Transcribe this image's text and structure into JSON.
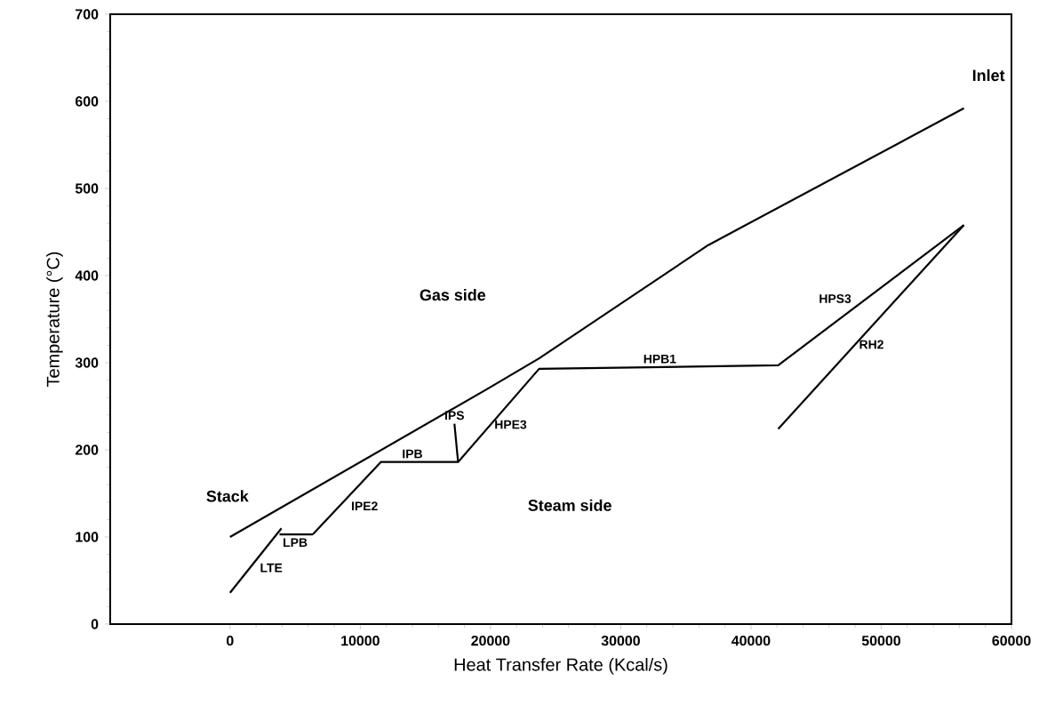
{
  "chart_data": {
    "type": "line",
    "xlabel": "Heat Transfer Rate (Kcal/s)",
    "ylabel": "Temperature (°C)",
    "xlim": [
      -9200,
      60000
    ],
    "ylim": [
      0,
      700
    ],
    "xticks": [
      0,
      10000,
      20000,
      30000,
      40000,
      50000,
      60000
    ],
    "yticks": [
      0,
      100,
      200,
      300,
      400,
      500,
      600,
      700
    ],
    "grid": false,
    "marker": "none",
    "line_style": "solid",
    "series": [
      {
        "color": "#000000",
        "x": [
          0,
          19770,
          23730,
          36720,
          56350
        ],
        "values": [
          100,
          270,
          305,
          435,
          592
        ]
      },
      {
        "color": "#000000",
        "x": [
          0,
          3950
        ],
        "values": [
          36,
          110
        ]
      },
      {
        "color": "#000000",
        "x": [
          3800,
          6360
        ],
        "values": [
          103,
          103
        ]
      },
      {
        "color": "#000000",
        "x": [
          6360,
          11580,
          17510,
          23730,
          42090,
          56350
        ],
        "values": [
          103,
          186,
          186,
          293,
          297,
          458
        ]
      },
      {
        "color": "#000000",
        "x": [
          17510,
          17230
        ],
        "values": [
          186,
          230
        ]
      },
      {
        "color": "#000000",
        "x": [
          42090,
          56350
        ],
        "values": [
          224,
          458
        ]
      }
    ],
    "annotations": [
      "Inlet",
      "Gas side",
      "Stack",
      "Steam side",
      {
        "text": "LTE",
        "x": 2000,
        "y": 74
      },
      {
        "text": "LPB",
        "x": 5000,
        "y": 103
      },
      {
        "text": "IPE2",
        "x": 9000,
        "y": 145
      },
      {
        "text": "IPB",
        "x": 14000,
        "y": 186
      },
      {
        "text": "IPS",
        "x": 17230,
        "y": 230
      },
      {
        "text": "HPE3",
        "x": 20000,
        "y": 229
      },
      {
        "text": "HPB1",
        "x": 33000,
        "y": 295
      },
      {
        "text": "HPS3",
        "x": 48000,
        "y": 364
      },
      {
        "text": "RH2",
        "x": 48000,
        "y": 321
      }
    ]
  }
}
